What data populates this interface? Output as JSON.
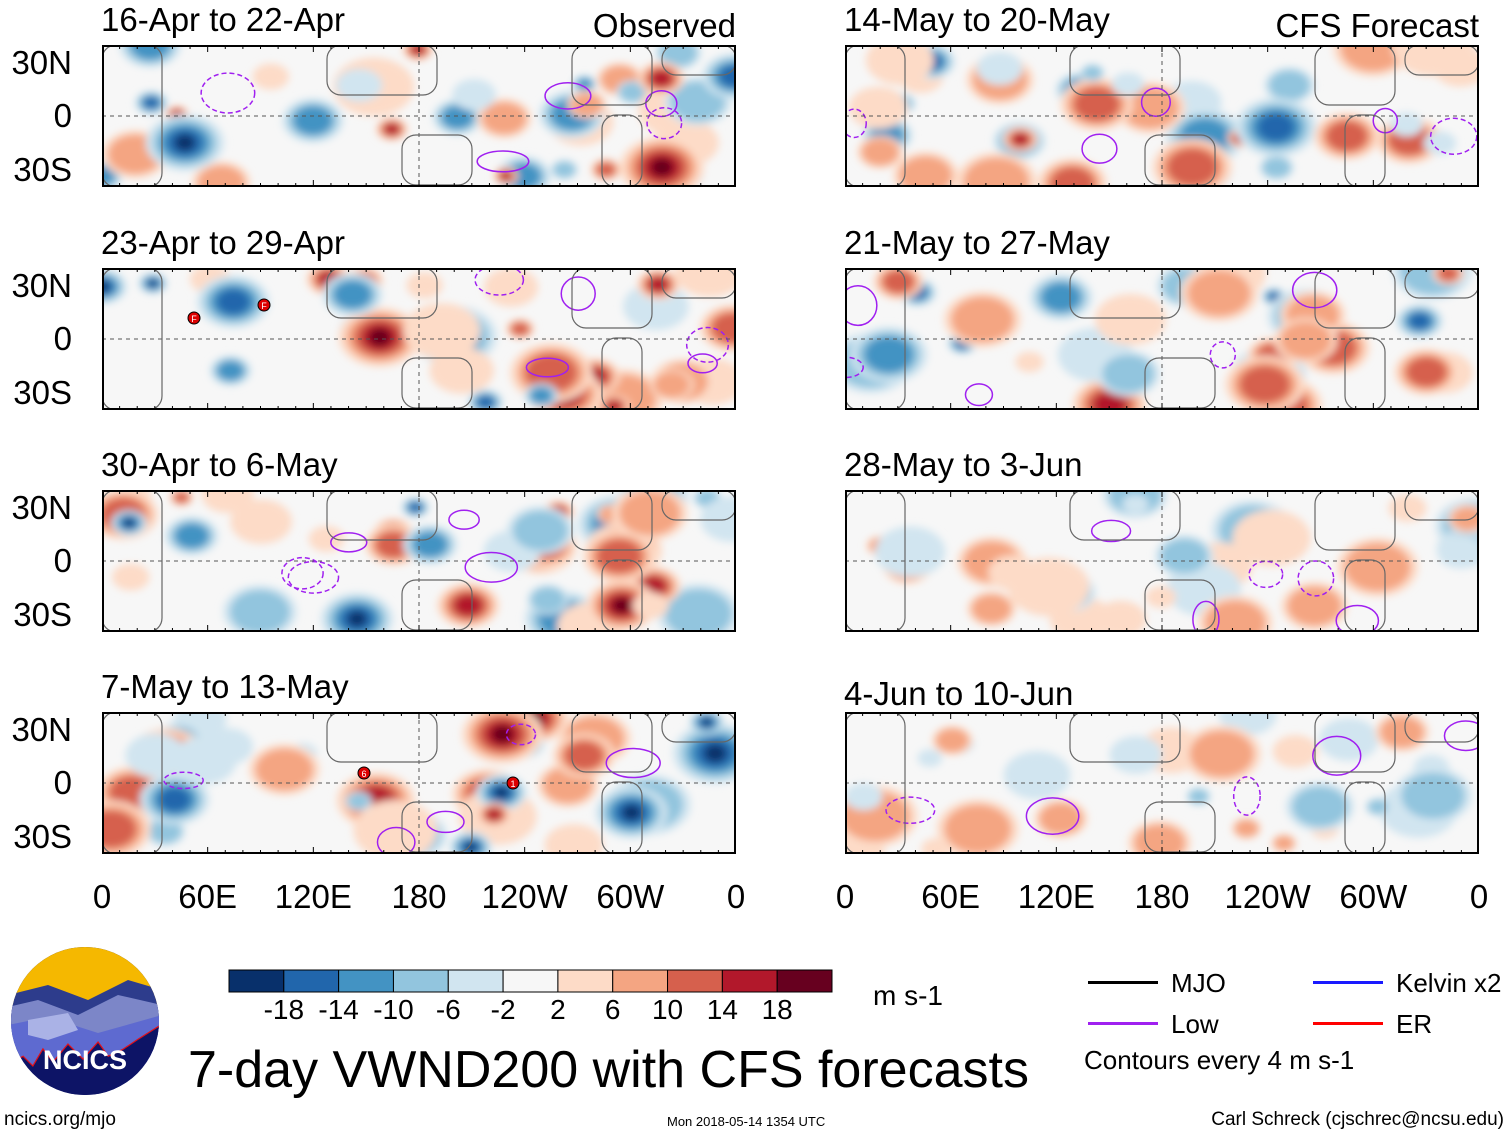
{
  "chart_data": {
    "type": "heatmap",
    "title": "7-day VWND200 with CFS forecasts",
    "variable": "200-hPa meridional wind anomaly",
    "units": "m s-1",
    "columns": [
      {
        "header": "Observed",
        "panels": [
          "16-Apr to 22-Apr",
          "23-Apr to 29-Apr",
          "30-Apr to 6-May",
          "7-May to 13-May"
        ]
      },
      {
        "header": "CFS Forecast",
        "panels": [
          "14-May to 20-May",
          "21-May to 27-May",
          "28-May to 3-Jun",
          "4-Jun to 10-Jun"
        ]
      }
    ],
    "y_ticks": [
      "30N",
      "0",
      "30S"
    ],
    "x_ticks": [
      "0",
      "60E",
      "120E",
      "180",
      "120W",
      "60W",
      "0"
    ],
    "colorbar": {
      "levels": [
        "-18",
        "-14",
        "-10",
        "-6",
        "-2",
        "2",
        "6",
        "10",
        "14",
        "18"
      ],
      "colors": [
        "#08306b",
        "#2166ac",
        "#4393c3",
        "#92c5de",
        "#d1e5f0",
        "#f7f7f7",
        "#fddbc7",
        "#f4a582",
        "#d6604d",
        "#b2182b",
        "#67001f"
      ],
      "units": "m s-1"
    },
    "legend": [
      {
        "label": "MJO",
        "color": "#000000"
      },
      {
        "label": "Kelvin x2",
        "color": "#1a1aff"
      },
      {
        "label": "Low",
        "color": "#a020f0"
      },
      {
        "label": "ER",
        "color": "#ff0000"
      }
    ],
    "contour_note": "Contours every 4 m s-1",
    "storm_markers": [
      {
        "panel": "23-Apr to 29-Apr",
        "label": "F"
      },
      {
        "panel": "23-Apr to 29-Apr",
        "label": "F"
      },
      {
        "panel": "7-May to 13-May",
        "label": "6"
      },
      {
        "panel": "7-May to 13-May",
        "label": "1"
      }
    ]
  },
  "logo": {
    "text": "NCICS"
  },
  "footer": {
    "left": "ncics.org/mjo",
    "center": "Mon 2018-05-14 1354 UTC",
    "right": "Carl Schreck (cjschrec@ncsu.edu)"
  }
}
